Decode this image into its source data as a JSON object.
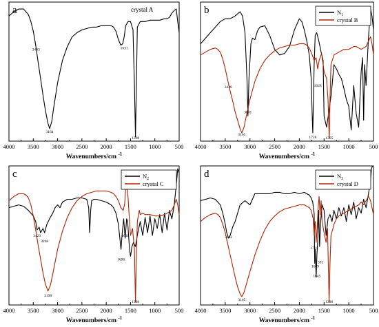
{
  "chart_data": [
    {
      "panel": "a",
      "type": "line",
      "xlabel": "Wavenumbers/cm",
      "xlabel_sup": "-1",
      "xlim": [
        4000,
        500
      ],
      "xticks": [
        "4000",
        "3500",
        "3000",
        "2500",
        "2000",
        "1500",
        "1000",
        "500"
      ],
      "ylim": [
        0,
        100
      ],
      "series": [
        {
          "name": "crystal A",
          "color": "#000000",
          "x": [
            4000,
            3900,
            3800,
            3700,
            3650,
            3600,
            3550,
            3500,
            3450,
            3400,
            3350,
            3300,
            3250,
            3200,
            3164,
            3120,
            3080,
            3000,
            2900,
            2800,
            2700,
            2600,
            2500,
            2400,
            2300,
            2200,
            2100,
            2000,
            1900,
            1850,
            1800,
            1750,
            1700,
            1660,
            1631,
            1600,
            1550,
            1500,
            1450,
            1420,
            1398,
            1380,
            1360,
            1300,
            1200,
            1100,
            1000,
            900,
            800,
            750,
            700,
            650,
            600,
            560,
            530,
            500
          ],
          "y": [
            90,
            93,
            95,
            95,
            93,
            91,
            86,
            79,
            69,
            57,
            45,
            33,
            22,
            13,
            9,
            14,
            24,
            42,
            58,
            68,
            75,
            78,
            80,
            81,
            82,
            82,
            83,
            83,
            83,
            82,
            79,
            73,
            69,
            70,
            75,
            83,
            86,
            86,
            80,
            40,
            3,
            40,
            82,
            86,
            86,
            87,
            87,
            87,
            88,
            88,
            89,
            92,
            94,
            95,
            86,
            78
          ]
        }
      ],
      "annotations": [
        {
          "text": "3443",
          "x": 3443,
          "y": 65
        },
        {
          "text": "3164",
          "x": 3164,
          "y": 6
        },
        {
          "text": "1631",
          "x": 1631,
          "y": 66
        },
        {
          "text": "1398",
          "x": 1398,
          "y": 0
        }
      ]
    },
    {
      "panel": "b",
      "type": "line",
      "xlabel": "Wavenumbers/cm",
      "xlabel_sup": "-1",
      "xlim": [
        4000,
        500
      ],
      "xticks": [
        "4000",
        "3500",
        "3000",
        "2500",
        "2000",
        "1500",
        "1000",
        "500"
      ],
      "ylim": [
        0,
        100
      ],
      "legend": {
        "position": "top-right",
        "entries": [
          "N",
          "crystal B"
        ],
        "subscripts": [
          "1",
          ""
        ]
      },
      "series": [
        {
          "name": "N1",
          "color": "#000000",
          "x": [
            4000,
            3900,
            3800,
            3700,
            3600,
            3500,
            3400,
            3300,
            3200,
            3150,
            3100,
            3060,
            3041,
            3020,
            2980,
            2950,
            2900,
            2850,
            2800,
            2700,
            2600,
            2500,
            2400,
            2300,
            2200,
            2100,
            2000,
            1950,
            1900,
            1850,
            1800,
            1760,
            1740,
            1728,
            1715,
            1700,
            1680,
            1650,
            1620,
            1600,
            1560,
            1520,
            1500,
            1450,
            1400,
            1350,
            1300,
            1250,
            1200,
            1150,
            1100,
            1050,
            1000,
            950,
            900,
            850,
            800,
            750,
            720,
            700,
            680,
            650,
            600,
            560,
            530,
            500
          ],
          "y": [
            70,
            74,
            78,
            82,
            86,
            88,
            88,
            90,
            93,
            90,
            78,
            45,
            18,
            45,
            70,
            74,
            73,
            79,
            82,
            83,
            76,
            66,
            62,
            63,
            68,
            80,
            88,
            86,
            80,
            72,
            62,
            45,
            18,
            6,
            30,
            55,
            76,
            78,
            74,
            71,
            64,
            58,
            18,
            10,
            22,
            35,
            55,
            52,
            48,
            45,
            38,
            30,
            25,
            8,
            40,
            20,
            10,
            50,
            60,
            15,
            55,
            40,
            75,
            95,
            90,
            80
          ]
        },
        {
          "name": "crystal B",
          "color": "#b22000",
          "x": [
            4000,
            3900,
            3800,
            3700,
            3650,
            3600,
            3550,
            3500,
            3450,
            3400,
            3350,
            3300,
            3250,
            3200,
            3165,
            3120,
            3080,
            3000,
            2900,
            2800,
            2700,
            2600,
            2500,
            2400,
            2300,
            2200,
            2100,
            2000,
            1900,
            1850,
            1800,
            1750,
            1700,
            1660,
            1630,
            1600,
            1550,
            1500,
            1450,
            1420,
            1395,
            1380,
            1360,
            1300,
            1200,
            1100,
            1000,
            900,
            850,
            800,
            750,
            700,
            650,
            600,
            560,
            530,
            500
          ],
          "y": [
            62,
            64,
            66,
            67,
            66,
            64,
            59,
            52,
            44,
            36,
            29,
            21,
            15,
            9,
            6,
            10,
            17,
            30,
            43,
            52,
            58,
            62,
            65,
            67,
            68,
            69,
            69,
            70,
            70,
            69,
            67,
            63,
            58,
            60,
            52,
            58,
            63,
            50,
            45,
            30,
            2,
            30,
            55,
            62,
            64,
            66,
            66,
            68,
            68,
            67,
            66,
            67,
            68,
            72,
            75,
            70,
            62
          ]
        }
      ],
      "annotations": [
        {
          "text": "3438",
          "x": 3438,
          "y": 38
        },
        {
          "text": "3041",
          "x": 3041,
          "y": 20
        },
        {
          "text": "3165",
          "x": 3165,
          "y": 4
        },
        {
          "text": "1728",
          "x": 1728,
          "y": 2
        },
        {
          "text": "1628",
          "x": 1628,
          "y": 39
        },
        {
          "text": "1395",
          "x": 1395,
          "y": 0
        }
      ]
    },
    {
      "panel": "c",
      "type": "line",
      "xlabel": "Wavenumbers/cm",
      "xlabel_sup": "-1",
      "xlim": [
        4000,
        500
      ],
      "xticks": [
        "4000",
        "3500",
        "3000",
        "2500",
        "2000",
        "1500",
        "1000",
        "500"
      ],
      "ylim": [
        0,
        100
      ],
      "legend": {
        "position": "top-right",
        "entries": [
          "N",
          "crystal C"
        ],
        "subscripts": [
          "2",
          ""
        ]
      },
      "series": [
        {
          "name": "N2",
          "color": "#000000",
          "x": [
            4000,
            3900,
            3800,
            3700,
            3600,
            3500,
            3450,
            3420,
            3380,
            3350,
            3300,
            3268,
            3220,
            3150,
            3100,
            3050,
            3000,
            2950,
            2900,
            2800,
            2700,
            2600,
            2500,
            2400,
            2360,
            2340,
            2320,
            2300,
            2250,
            2200,
            2100,
            2000,
            1900,
            1850,
            1800,
            1750,
            1720,
            1696,
            1670,
            1640,
            1611,
            1580,
            1560,
            1520,
            1500,
            1470,
            1440,
            1400,
            1350,
            1300,
            1250,
            1200,
            1150,
            1100,
            1050,
            1000,
            950,
            900,
            850,
            800,
            750,
            700,
            650,
            600,
            550,
            530,
            500
          ],
          "y": [
            70,
            71,
            72,
            71,
            68,
            64,
            60,
            54,
            56,
            52,
            55,
            52,
            58,
            63,
            66,
            70,
            72,
            70,
            74,
            76,
            76,
            77,
            77,
            76,
            70,
            52,
            68,
            75,
            76,
            76,
            75,
            74,
            72,
            70,
            66,
            58,
            48,
            40,
            52,
            62,
            48,
            62,
            60,
            40,
            35,
            42,
            45,
            42,
            52,
            60,
            50,
            63,
            52,
            64,
            50,
            62,
            55,
            65,
            52,
            66,
            54,
            68,
            62,
            72,
            90,
            98,
            95
          ]
        },
        {
          "name": "crystal C",
          "color": "#b22000",
          "x": [
            4000,
            3900,
            3800,
            3700,
            3650,
            3600,
            3550,
            3500,
            3450,
            3400,
            3350,
            3300,
            3250,
            3198,
            3150,
            3100,
            3050,
            3000,
            2900,
            2800,
            2700,
            2600,
            2500,
            2400,
            2300,
            2200,
            2100,
            2000,
            1900,
            1850,
            1800,
            1750,
            1700,
            1650,
            1620,
            1600,
            1560,
            1520,
            1500,
            1460,
            1420,
            1398,
            1380,
            1360,
            1320,
            1300,
            1250,
            1200,
            1100,
            1000,
            900,
            800,
            750,
            700,
            650,
            600,
            560,
            530,
            500
          ],
          "y": [
            75,
            78,
            80,
            80,
            79,
            77,
            72,
            64,
            54,
            43,
            33,
            23,
            15,
            10,
            14,
            22,
            31,
            40,
            53,
            63,
            70,
            75,
            78,
            80,
            81,
            82,
            82,
            82,
            81,
            80,
            78,
            75,
            70,
            68,
            73,
            85,
            82,
            60,
            50,
            55,
            40,
            2,
            35,
            60,
            68,
            65,
            66,
            65,
            65,
            64,
            64,
            65,
            66,
            67,
            68,
            72,
            76,
            72,
            65
          ]
        }
      ],
      "annotations": [
        {
          "text": "3423",
          "x": 3423,
          "y": 49
        },
        {
          "text": "3268",
          "x": 3268,
          "y": 45
        },
        {
          "text": "3198",
          "x": 3198,
          "y": 6
        },
        {
          "text": "1696",
          "x": 1696,
          "y": 32
        },
        {
          "text": "1611",
          "x": 1611,
          "y": 49
        },
        {
          "text": "1398",
          "x": 1398,
          "y": 0
        }
      ]
    },
    {
      "panel": "d",
      "type": "line",
      "xlabel": "Wavenumbers/cm",
      "xlabel_sup": "-1",
      "xlim": [
        4000,
        500
      ],
      "xticks": [
        "4000",
        "3500",
        "3000",
        "2500",
        "2000",
        "1500",
        "1000",
        "500"
      ],
      "ylim": [
        0,
        100
      ],
      "legend": {
        "position": "top-right",
        "entries": [
          "N",
          "crystal D"
        ],
        "subscripts": [
          "3",
          ""
        ]
      },
      "series": [
        {
          "name": "N3",
          "color": "#000000",
          "x": [
            4000,
            3900,
            3800,
            3700,
            3600,
            3550,
            3500,
            3470,
            3432,
            3400,
            3350,
            3300,
            3250,
            3200,
            3100,
            3000,
            2950,
            2900,
            2800,
            2700,
            2600,
            2500,
            2400,
            2300,
            2200,
            2100,
            2000,
            1900,
            1850,
            1800,
            1760,
            1730,
            1701,
            1690,
            1679,
            1660,
            1645,
            1630,
            1610,
            1591,
            1570,
            1540,
            1500,
            1460,
            1420,
            1380,
            1340,
            1300,
            1250,
            1200,
            1150,
            1100,
            1050,
            1000,
            950,
            900,
            850,
            800,
            750,
            700,
            650,
            600,
            560,
            540,
            520,
            500
          ],
          "y": [
            75,
            76,
            77,
            76,
            72,
            66,
            58,
            52,
            48,
            50,
            56,
            60,
            66,
            72,
            75,
            72,
            76,
            80,
            80,
            80,
            80,
            81,
            81,
            80,
            80,
            81,
            80,
            81,
            80,
            79,
            77,
            74,
            66,
            30,
            40,
            20,
            36,
            45,
            68,
            42,
            60,
            72,
            68,
            50,
            62,
            65,
            60,
            68,
            62,
            70,
            64,
            70,
            60,
            72,
            65,
            74,
            62,
            70,
            66,
            76,
            70,
            80,
            90,
            98,
            100,
            100
          ]
        },
        {
          "name": "crystal D",
          "color": "#b22000",
          "x": [
            4000,
            3900,
            3800,
            3700,
            3650,
            3600,
            3550,
            3500,
            3450,
            3400,
            3350,
            3300,
            3250,
            3200,
            3165,
            3120,
            3080,
            3000,
            2900,
            2800,
            2700,
            2600,
            2500,
            2400,
            2300,
            2200,
            2100,
            2000,
            1900,
            1850,
            1800,
            1760,
            1720,
            1700,
            1680,
            1660,
            1640,
            1620,
            1600,
            1580,
            1560,
            1540,
            1500,
            1460,
            1430,
            1398,
            1380,
            1360,
            1320,
            1300,
            1250,
            1200,
            1100,
            1000,
            900,
            800,
            750,
            700,
            650,
            600,
            560,
            530,
            500
          ],
          "y": [
            60,
            63,
            65,
            66,
            65,
            63,
            58,
            52,
            44,
            36,
            28,
            20,
            13,
            8,
            6,
            9,
            14,
            24,
            36,
            46,
            54,
            60,
            64,
            67,
            69,
            70,
            71,
            72,
            72,
            71,
            70,
            68,
            62,
            50,
            60,
            45,
            55,
            70,
            78,
            65,
            75,
            60,
            52,
            45,
            55,
            2,
            30,
            50,
            55,
            58,
            62,
            64,
            66,
            68,
            70,
            72,
            74,
            72,
            75,
            78,
            75,
            70,
            65
          ]
        }
      ],
      "annotations": [
        {
          "text": "3432",
          "x": 3432,
          "y": 48
        },
        {
          "text": "3165",
          "x": 3165,
          "y": 3
        },
        {
          "text": "1701",
          "x": 1701,
          "y": 40
        },
        {
          "text": "1679",
          "x": 1679,
          "y": 27
        },
        {
          "text": "1645",
          "x": 1645,
          "y": 20
        },
        {
          "text": "1591",
          "x": 1591,
          "y": 30
        },
        {
          "text": "1398",
          "x": 1398,
          "y": 0
        }
      ]
    }
  ]
}
